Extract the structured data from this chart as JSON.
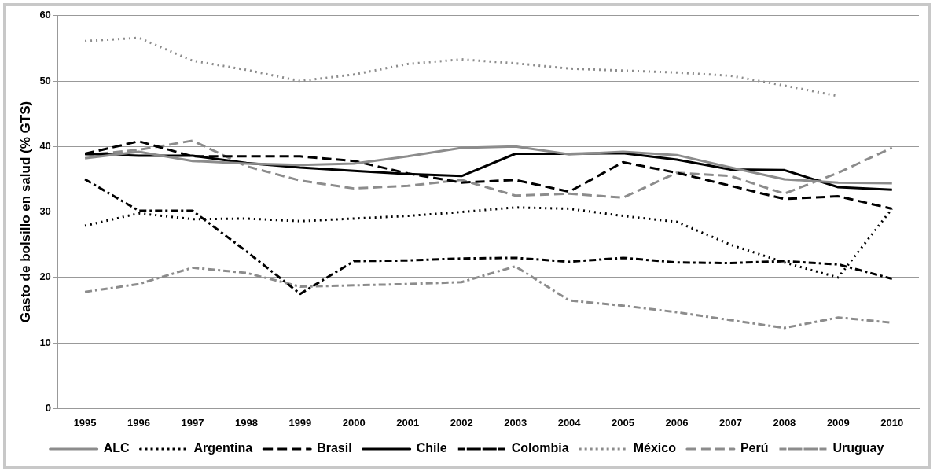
{
  "chart_data": {
    "type": "line",
    "ylabel": "Gasto de bolsillo en salud (% GTS)",
    "categories": [
      "1995",
      "1996",
      "1997",
      "1998",
      "1999",
      "2000",
      "2001",
      "2002",
      "2003",
      "2004",
      "2005",
      "2006",
      "2007",
      "2008",
      "2009",
      "2010"
    ],
    "ylim": [
      0,
      60
    ],
    "yticks": [
      0,
      10,
      20,
      30,
      40,
      50,
      60
    ],
    "grid": "y",
    "legend": "bottom",
    "marker": "none",
    "series": [
      {
        "name": "ALC",
        "color": "#8c8c8c",
        "line_style": "solid",
        "values": [
          38.2,
          39.2,
          37.8,
          37.4,
          37.2,
          37.4,
          38.5,
          39.8,
          40,
          38.8,
          39.2,
          38.7,
          36.8,
          35,
          34.5,
          34.4
        ]
      },
      {
        "name": "Argentina",
        "color": "#000000",
        "line_style": "dotted",
        "values": [
          27.9,
          29.8,
          28.9,
          29,
          28.6,
          29,
          29.4,
          30,
          30.7,
          30.5,
          29.4,
          28.5,
          25,
          22.3,
          20,
          30.5
        ]
      },
      {
        "name": "Brasil",
        "color": "#000000",
        "line_style": "dashed",
        "values": [
          38.9,
          40.8,
          38.5,
          38.5,
          38.5,
          37.8,
          35.9,
          34.5,
          34.9,
          33.1,
          37.6,
          36,
          34,
          32,
          32.4,
          30.5
        ]
      },
      {
        "name": "Chile",
        "color": "#000000",
        "line_style": "solid",
        "values": [
          38.9,
          38.6,
          38.6,
          37.5,
          36.8,
          36.3,
          35.8,
          35.5,
          38.9,
          38.9,
          39,
          38,
          36.5,
          36.4,
          33.8,
          33.4
        ]
      },
      {
        "name": "Colombia",
        "color": "#000000",
        "line_style": "dashdot",
        "values": [
          35,
          30.2,
          30.2,
          24,
          17.5,
          22.5,
          22.6,
          22.9,
          23,
          22.4,
          23,
          22.3,
          22.2,
          22.5,
          22,
          19.8
        ]
      },
      {
        "name": "México",
        "color": "#8c8c8c",
        "line_style": "dotted",
        "values": [
          56.1,
          56.6,
          53.1,
          51.7,
          50,
          51,
          52.6,
          53.3,
          52.7,
          51.9,
          51.6,
          51.3,
          50.8,
          49.3,
          47.7,
          null
        ]
      },
      {
        "name": "Perú",
        "color": "#8c8c8c",
        "line_style": "dashed",
        "values": [
          38.7,
          39.5,
          40.9,
          37,
          34.8,
          33.6,
          34,
          34.9,
          32.5,
          32.8,
          32.2,
          36,
          35.5,
          32.8,
          36,
          39.8
        ]
      },
      {
        "name": "Uruguay",
        "color": "#8c8c8c",
        "line_style": "dashdot",
        "values": [
          17.8,
          19,
          21.5,
          20.7,
          18.6,
          18.8,
          19,
          19.3,
          21.7,
          16.5,
          15.7,
          14.7,
          13.5,
          12.3,
          13.9,
          13.1
        ]
      }
    ]
  }
}
